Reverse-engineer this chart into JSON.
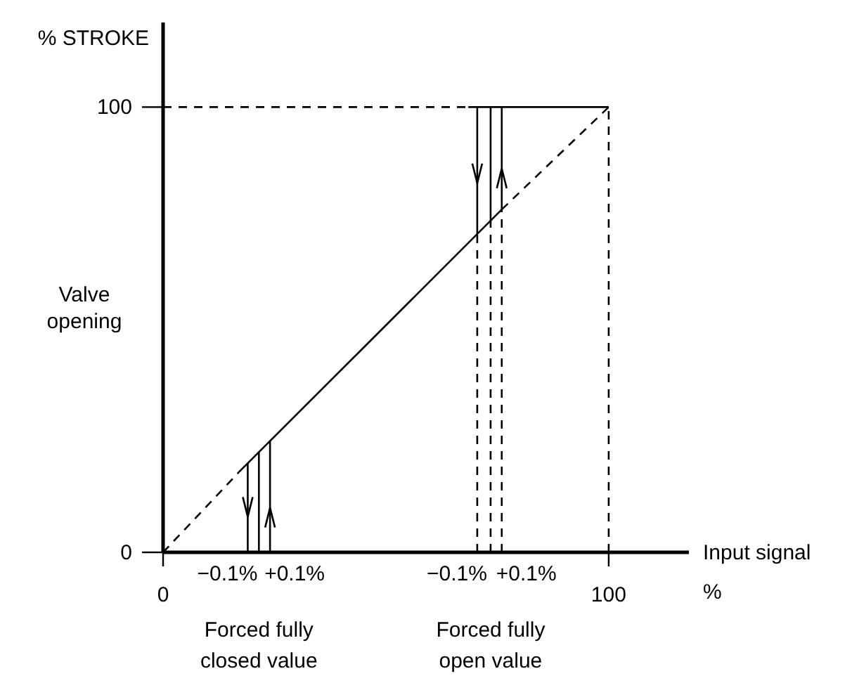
{
  "chart_data": {
    "type": "line",
    "ylabel": "% STROKE",
    "xlabel": "Input signal %",
    "xlim": [
      0,
      118
    ],
    "ylim": [
      0,
      119
    ],
    "xticks": [
      0,
      100
    ],
    "yticks": [
      0,
      100
    ],
    "series": [
      {
        "color": "#000000",
        "line_style": "dashed",
        "x": [
          0,
          17
        ],
        "values": [
          0,
          18
        ]
      },
      {
        "color": "#000000",
        "line_style": "solid",
        "x": [
          17,
          76
        ],
        "values": [
          18,
          77
        ]
      },
      {
        "color": "#000000",
        "line_style": "dashed",
        "x": [
          76,
          100
        ],
        "values": [
          77,
          100
        ]
      },
      {
        "color": "#000000",
        "line_style": "dashed",
        "x": [
          0,
          68.5
        ],
        "values": [
          100,
          100
        ]
      },
      {
        "color": "#000000",
        "line_style": "solid",
        "x": [
          68.5,
          100
        ],
        "values": [
          100,
          100
        ]
      },
      {
        "color": "#000000",
        "line_style": "dashed",
        "x": [
          100,
          100
        ],
        "values": [
          0,
          100
        ]
      },
      {
        "color": "#000000",
        "line_style": "solid",
        "x": [
          19,
          19
        ],
        "values": [
          0,
          20
        ]
      },
      {
        "color": "#000000",
        "line_style": "solid",
        "x": [
          21.5,
          21.5
        ],
        "values": [
          0,
          22.5
        ]
      },
      {
        "color": "#000000",
        "line_style": "solid",
        "x": [
          24,
          24
        ],
        "values": [
          0,
          25
        ]
      },
      {
        "color": "#000000",
        "line_style": "dashed",
        "x": [
          70.5,
          70.5
        ],
        "values": [
          0,
          71.5
        ]
      },
      {
        "color": "#000000",
        "line_style": "dashed",
        "x": [
          73.5,
          73.5
        ],
        "values": [
          0,
          74.5
        ]
      },
      {
        "color": "#000000",
        "line_style": "dashed",
        "x": [
          76,
          76
        ],
        "values": [
          0,
          77
        ]
      },
      {
        "color": "#000000",
        "line_style": "solid",
        "x": [
          70.5,
          70.5
        ],
        "values": [
          71.5,
          100
        ]
      },
      {
        "color": "#000000",
        "line_style": "solid",
        "x": [
          73.5,
          73.5
        ],
        "values": [
          74.5,
          100
        ]
      },
      {
        "color": "#000000",
        "line_style": "solid",
        "x": [
          76,
          76
        ],
        "values": [
          77,
          100
        ]
      }
    ],
    "annotations": [
      {
        "text": "−0.1%",
        "x": 19,
        "y": 0
      },
      {
        "text": "+0.1%",
        "x": 24,
        "y": 0
      },
      {
        "text": "−0.1%",
        "x": 70.5,
        "y": 0
      },
      {
        "text": "+0.1%",
        "x": 76,
        "y": 0
      },
      "Forced fully closed value",
      "Forced fully open value",
      "Valve opening"
    ]
  }
}
